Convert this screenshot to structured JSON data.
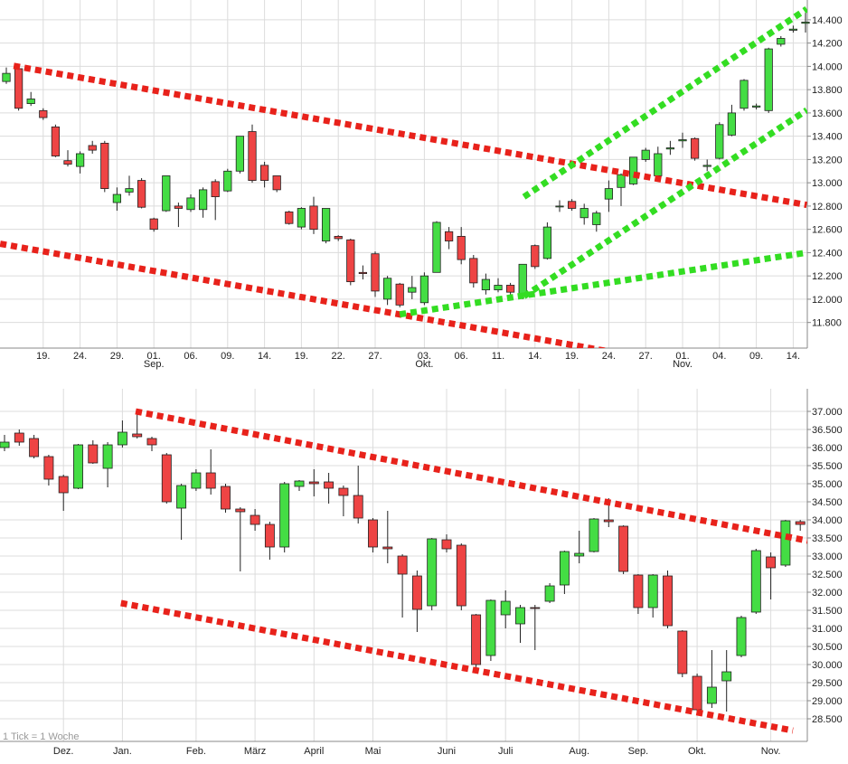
{
  "chart_data": [
    {
      "type": "candlestick",
      "up_color": "#44dd44",
      "down_color": "#ee4444",
      "grid": true,
      "xticks": [
        {
          "value": 3,
          "label": "19."
        },
        {
          "value": 6,
          "label": "24."
        },
        {
          "value": 9,
          "label": "29."
        },
        {
          "value": 12,
          "label": "01."
        },
        {
          "value": 15,
          "label": "06."
        },
        {
          "value": 18,
          "label": "09."
        },
        {
          "value": 21,
          "label": "14."
        },
        {
          "value": 24,
          "label": "19."
        },
        {
          "value": 27,
          "label": "22."
        },
        {
          "value": 30,
          "label": "27."
        },
        {
          "value": 34,
          "label": "03."
        },
        {
          "value": 37,
          "label": "06."
        },
        {
          "value": 40,
          "label": "11."
        },
        {
          "value": 43,
          "label": "14."
        },
        {
          "value": 46,
          "label": "19."
        },
        {
          "value": 49,
          "label": "24."
        },
        {
          "value": 52,
          "label": "27."
        },
        {
          "value": 55,
          "label": "01."
        },
        {
          "value": 58,
          "label": "04."
        },
        {
          "value": 61,
          "label": "09."
        },
        {
          "value": 64,
          "label": "14."
        }
      ],
      "xticks_secondary": [
        {
          "value": 12,
          "label": "Sep."
        },
        {
          "value": 34,
          "label": "Okt."
        },
        {
          "value": 55,
          "label": "Nov."
        }
      ],
      "ylim": [
        11580,
        14570
      ],
      "yticks": [
        {
          "value": 11800,
          "label": "11.800"
        },
        {
          "value": 12000,
          "label": "12.000"
        },
        {
          "value": 12200,
          "label": "12.200"
        },
        {
          "value": 12400,
          "label": "12.400"
        },
        {
          "value": 12600,
          "label": "12.600"
        },
        {
          "value": 12800,
          "label": "12.800"
        },
        {
          "value": 13000,
          "label": "13.000"
        },
        {
          "value": 13200,
          "label": "13.200"
        },
        {
          "value": 13400,
          "label": "13.400"
        },
        {
          "value": 13600,
          "label": "13.600"
        },
        {
          "value": 13800,
          "label": "13.800"
        },
        {
          "value": 14000,
          "label": "14.000"
        },
        {
          "value": 14200,
          "label": "14.200"
        },
        {
          "value": 14400,
          "label": "14.400"
        }
      ],
      "open": [
        13870,
        13980,
        13680,
        13620,
        13480,
        13190,
        13140,
        13320,
        13340,
        12830,
        12920,
        13020,
        12690,
        12760,
        12800,
        12770,
        12770,
        13010,
        12930,
        13100,
        13440,
        13150,
        13060,
        12750,
        12620,
        12800,
        12500,
        12540,
        12510,
        12230,
        12390,
        12000,
        12130,
        12060,
        11970,
        12230,
        12580,
        12540,
        12350,
        12080,
        12080,
        12120,
        12040,
        12460,
        12350,
        12800,
        12840,
        12700,
        12640,
        12860,
        12960,
        12990,
        13200,
        13060,
        13290,
        13360,
        13380,
        13140,
        13210,
        13410,
        13640,
        13650,
        13620,
        14190,
        14310,
        14370
      ],
      "high": [
        13990,
        14000,
        13780,
        13640,
        13500,
        13280,
        13270,
        13360,
        13360,
        12960,
        13060,
        13040,
        12700,
        13060,
        12830,
        12900,
        12960,
        13030,
        13120,
        13400,
        13500,
        13180,
        13060,
        12760,
        12790,
        12880,
        12780,
        12550,
        12520,
        12290,
        12410,
        12200,
        12140,
        12200,
        12230,
        12670,
        12620,
        12620,
        12380,
        12220,
        12180,
        12140,
        12300,
        12470,
        12660,
        12850,
        12860,
        12820,
        12760,
        13020,
        13080,
        13220,
        13300,
        13310,
        13360,
        13430,
        13390,
        13200,
        13520,
        13670,
        13890,
        13680,
        14160,
        14260,
        14350,
        14460
      ],
      "low": [
        13850,
        13620,
        13660,
        13540,
        13220,
        13140,
        13080,
        13250,
        12920,
        12760,
        12890,
        12780,
        12580,
        12750,
        12620,
        12750,
        12700,
        12680,
        12920,
        13080,
        13000,
        12960,
        12920,
        12640,
        12600,
        12560,
        12480,
        12500,
        12120,
        12170,
        12020,
        11950,
        11930,
        12000,
        11950,
        12230,
        12430,
        12300,
        12100,
        12040,
        12060,
        12000,
        12000,
        12260,
        12340,
        12750,
        12760,
        12640,
        12580,
        12750,
        12800,
        12980,
        13180,
        13040,
        13240,
        13300,
        13190,
        13100,
        13200,
        13400,
        13620,
        13630,
        13600,
        14170,
        14290,
        14290
      ],
      "close": [
        13940,
        13640,
        13720,
        13560,
        13230,
        13160,
        13250,
        13280,
        12950,
        12900,
        12950,
        12790,
        12600,
        13060,
        12780,
        12870,
        12940,
        12880,
        13100,
        13400,
        13020,
        13020,
        12940,
        12650,
        12780,
        12600,
        12780,
        12520,
        12150,
        12220,
        12070,
        12180,
        11950,
        12100,
        12200,
        12660,
        12500,
        12340,
        12140,
        12170,
        12120,
        12060,
        12300,
        12280,
        12620,
        12800,
        12780,
        12780,
        12740,
        12950,
        13070,
        13220,
        13280,
        13250,
        13300,
        13370,
        13210,
        13150,
        13500,
        13600,
        13880,
        13660,
        14150,
        14240,
        14320,
        14380
      ],
      "trendlines": [
        {
          "color": "#e8221b",
          "x": [
            0.6,
            65.1
          ],
          "values": [
            14004,
            12810
          ]
        },
        {
          "color": "#e8221b",
          "x": [
            -0.5,
            50.2
          ],
          "values": [
            12476,
            11529
          ]
        },
        {
          "color": "#33dd22",
          "x": [
            32,
            65.1
          ],
          "values": [
            11870,
            12400
          ]
        },
        {
          "color": "#33dd22",
          "x": [
            42.1,
            65.1
          ],
          "values": [
            12025,
            13624
          ]
        },
        {
          "color": "#33dd22",
          "x": [
            42.1,
            65.1
          ],
          "values": [
            12879,
            14493
          ]
        }
      ]
    },
    {
      "type": "candlestick",
      "up_color": "#44dd44",
      "down_color": "#ee4444",
      "grid": true,
      "note": "1 Tick = 1 Woche",
      "xticks": [
        {
          "value": 4,
          "label": "Dez."
        },
        {
          "value": 8,
          "label": "Jan."
        },
        {
          "value": 13,
          "label": "Feb."
        },
        {
          "value": 17,
          "label": "März"
        },
        {
          "value": 21,
          "label": "April"
        },
        {
          "value": 25,
          "label": "Mai"
        },
        {
          "value": 30,
          "label": "Juni"
        },
        {
          "value": 34,
          "label": "Juli"
        },
        {
          "value": 39,
          "label": "Aug."
        },
        {
          "value": 43,
          "label": "Sep."
        },
        {
          "value": 47,
          "label": "Okt."
        },
        {
          "value": 52,
          "label": "Nov."
        }
      ],
      "ylim": [
        27875,
        37625
      ],
      "yticks": [
        {
          "value": 28500,
          "label": "28.500"
        },
        {
          "value": 29000,
          "label": "29.000"
        },
        {
          "value": 29500,
          "label": "29.500"
        },
        {
          "value": 30000,
          "label": "30.000"
        },
        {
          "value": 30500,
          "label": "30.500"
        },
        {
          "value": 31000,
          "label": "31.000"
        },
        {
          "value": 31500,
          "label": "31.500"
        },
        {
          "value": 32000,
          "label": "32.000"
        },
        {
          "value": 32500,
          "label": "32.500"
        },
        {
          "value": 33000,
          "label": "33.000"
        },
        {
          "value": 33500,
          "label": "33.500"
        },
        {
          "value": 34000,
          "label": "34.000"
        },
        {
          "value": 34500,
          "label": "34.500"
        },
        {
          "value": 35000,
          "label": "35.000"
        },
        {
          "value": 35500,
          "label": "35.500"
        },
        {
          "value": 36000,
          "label": "36.000"
        },
        {
          "value": 36500,
          "label": "36.500"
        },
        {
          "value": 37000,
          "label": "37.000"
        }
      ],
      "open": [
        36000,
        36400,
        36250,
        35750,
        35200,
        34875,
        36075,
        35425,
        36075,
        36375,
        36250,
        35800,
        34325,
        34875,
        35300,
        34925,
        34300,
        34125,
        33875,
        33250,
        34925,
        35050,
        35050,
        34875,
        34675,
        34000,
        33250,
        33000,
        32450,
        31625,
        33450,
        33300,
        31375,
        30250,
        31375,
        31125,
        31575,
        31750,
        32200,
        33000,
        33125,
        34000,
        33825,
        32475,
        31575,
        32450,
        30925,
        29675,
        28925,
        29550,
        30250,
        31450,
        32975,
        32750,
        33950
      ],
      "high": [
        36350,
        36500,
        36350,
        35800,
        35250,
        36100,
        36200,
        36150,
        36750,
        37000,
        36300,
        35850,
        35000,
        35400,
        35950,
        35000,
        34350,
        34300,
        33950,
        35050,
        35100,
        35400,
        35300,
        34950,
        35500,
        34050,
        34250,
        33050,
        32600,
        33500,
        33600,
        33350,
        31400,
        31800,
        32050,
        31650,
        31650,
        32250,
        33150,
        33700,
        34050,
        34600,
        33850,
        32500,
        32500,
        32600,
        30950,
        29750,
        30400,
        30400,
        31350,
        33200,
        33100,
        34000,
        34000
      ],
      "low": [
        35900,
        36050,
        35700,
        34950,
        34250,
        34850,
        35550,
        34900,
        36000,
        36250,
        35900,
        34450,
        33450,
        34800,
        34700,
        34200,
        32575,
        33700,
        32900,
        33100,
        34800,
        34650,
        34450,
        34100,
        33900,
        33100,
        32800,
        31300,
        30900,
        31500,
        33100,
        31500,
        29800,
        30100,
        31000,
        30600,
        30400,
        31700,
        31950,
        32800,
        33100,
        33800,
        32500,
        31400,
        31300,
        31000,
        29650,
        28650,
        28800,
        28700,
        30200,
        31400,
        31800,
        32700,
        33700
      ],
      "close": [
        36150,
        36150,
        35750,
        35125,
        34750,
        36075,
        35575,
        36075,
        36425,
        36300,
        36075,
        34500,
        34950,
        35300,
        34875,
        34300,
        34225,
        33875,
        33250,
        35000,
        35075,
        35000,
        34875,
        34675,
        34050,
        33250,
        33200,
        32500,
        31525,
        33475,
        33200,
        31625,
        30000,
        31775,
        31750,
        31575,
        31550,
        32175,
        33125,
        33075,
        34025,
        33950,
        32575,
        31575,
        32475,
        31075,
        29750,
        28750,
        29375,
        29800,
        31300,
        33150,
        32675,
        33975,
        33875
      ],
      "trendlines": [
        {
          "color": "#e8221b",
          "x": [
            8.9,
            54.5
          ],
          "values": [
            37000,
            33425
          ]
        },
        {
          "color": "#e8221b",
          "x": [
            7.9,
            53.5
          ],
          "values": [
            31700,
            28175
          ]
        }
      ]
    }
  ]
}
